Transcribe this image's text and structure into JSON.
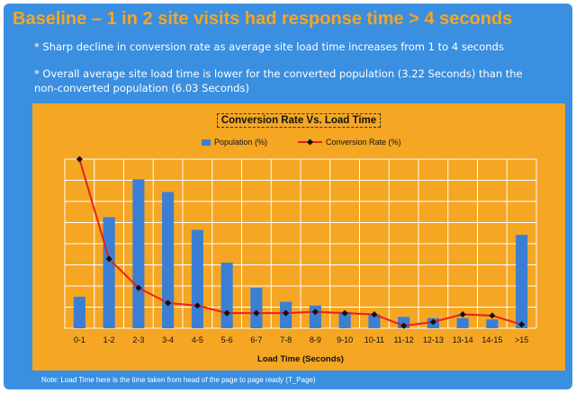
{
  "slide": {
    "title": "Baseline – 1 in 2 site visits had response time > 4 seconds",
    "bullets": [
      "* Sharp decline in conversion rate as average site load time increases from 1 to 4 seconds",
      "* Overall average site load time is lower for the converted population (3.22 Seconds) than the non-converted population (6.03 Seconds)"
    ],
    "note": "Note: Load Time here is the time taken from head of the page to page ready (T_Page)"
  },
  "colors": {
    "background": "#3a8fe0",
    "title": "#f5a623",
    "chart_panel": "#f5a623",
    "bar": "#3b7fd4",
    "line": "#e8201a",
    "marker": "#111111",
    "grid": "#ffffff"
  },
  "chart_data": {
    "type": "bar",
    "title": "Conversion Rate Vs. Load Time",
    "xlabel": "Load Time (Seconds)",
    "ylabel": "",
    "categories": [
      "0-1",
      "1-2",
      "2-3",
      "3-4",
      "4-5",
      "5-6",
      "6-7",
      "7-8",
      "8-9",
      "9-10",
      "10-11",
      "11-12",
      "12-13",
      "13-14",
      "14-15",
      ">15"
    ],
    "grid": true,
    "legend": "top-center",
    "series": [
      {
        "name": "Population (%)",
        "type": "bar",
        "values": [
          2.5,
          8.8,
          11.8,
          10.8,
          7.8,
          5.2,
          3.2,
          2.1,
          1.8,
          1.3,
          1.1,
          0.9,
          0.8,
          0.8,
          0.7,
          7.4
        ]
      },
      {
        "name": "Conversion Rate (%)",
        "type": "line",
        "values": [
          13.4,
          5.5,
          3.2,
          2.0,
          1.8,
          1.2,
          1.2,
          1.2,
          1.3,
          1.2,
          1.1,
          0.2,
          0.5,
          1.1,
          1.0,
          0.3
        ]
      }
    ],
    "ylim": [
      0,
      13.4
    ]
  }
}
